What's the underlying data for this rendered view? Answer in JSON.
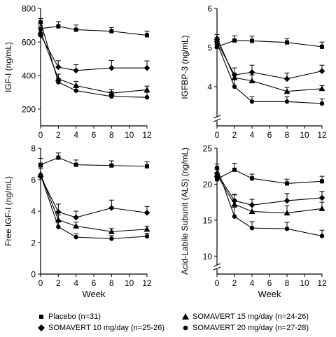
{
  "series_names": [
    "Placebo (n=31)",
    "SOMAVERT 10 mg/day (n=25-26)",
    "SOMAVERT 15 mg/day (n=24-26)",
    "SOMAVERT 20 mg/day (n=27-28)"
  ],
  "legend": {
    "placebo": "Placebo (n=31)",
    "s10": "SOMAVERT 10 mg/day (n=25-26)",
    "s15": "SOMAVERT 15 mg/day (n=24-26)",
    "s20": "SOMAVERT 20 mg/day (n=27-28)"
  },
  "chart_data": [
    {
      "type": "line",
      "title": "",
      "xlabel": "",
      "ylabel": "IGF-I (ng/mL)",
      "xlim": [
        0,
        12
      ],
      "ylim": [
        100,
        800
      ],
      "x_ticks": [
        0,
        2,
        4,
        6,
        8,
        10,
        12
      ],
      "y_ticks": [
        200,
        400,
        600,
        800
      ],
      "grid": false,
      "x": [
        0,
        2,
        4,
        8,
        12
      ],
      "series": [
        {
          "name": "Placebo (n=31)",
          "marker": "square",
          "values": [
            680,
            693,
            673,
            664,
            640
          ],
          "errors": [
            30,
            28,
            28,
            22,
            25
          ]
        },
        {
          "name": "SOMAVERT 10 mg/day (n=25-26)",
          "marker": "diamond",
          "values": [
            640,
            450,
            430,
            445,
            445
          ],
          "errors": [
            40,
            38,
            35,
            45,
            42
          ]
        },
        {
          "name": "SOMAVERT 15 mg/day (n=24-26)",
          "marker": "triangle",
          "values": [
            660,
            380,
            340,
            295,
            315
          ],
          "errors": [
            40,
            28,
            25,
            22,
            22
          ]
        },
        {
          "name": "SOMAVERT 20 mg/day (n=27-28)",
          "marker": "circle",
          "values": [
            720,
            360,
            310,
            275,
            270
          ],
          "errors": [
            20,
            22,
            20,
            28,
            30
          ]
        }
      ]
    },
    {
      "type": "line",
      "title": "",
      "xlabel": "",
      "ylabel": "IGFBP-3 (ng/mL)",
      "xlim": [
        0,
        12
      ],
      "ylim": [
        3,
        6
      ],
      "y_axis_break": true,
      "x_ticks": [
        0,
        2,
        4,
        6,
        8,
        10,
        12
      ],
      "y_ticks": [
        4,
        5,
        6
      ],
      "grid": false,
      "x": [
        0,
        2,
        4,
        8,
        12
      ],
      "series": [
        {
          "name": "Placebo (n=31)",
          "marker": "square",
          "values": [
            5.02,
            5.18,
            5.17,
            5.13,
            5.02
          ],
          "errors": [
            0.06,
            0.12,
            0.12,
            0.1,
            0.12
          ]
        },
        {
          "name": "SOMAVERT 10 mg/day (n=25-26)",
          "marker": "diamond",
          "values": [
            5.15,
            4.3,
            4.37,
            4.2,
            4.4
          ],
          "errors": [
            0.1,
            0.18,
            0.18,
            0.15,
            0.15
          ]
        },
        {
          "name": "SOMAVERT 15 mg/day (n=24-26)",
          "marker": "triangle",
          "values": [
            5.25,
            4.23,
            4.15,
            3.88,
            3.95
          ],
          "errors": [
            0.08,
            0.12,
            0.15,
            0.1,
            0.08
          ]
        },
        {
          "name": "SOMAVERT 20 mg/day (n=27-28)",
          "marker": "circle",
          "values": [
            5.12,
            4.0,
            3.62,
            3.62,
            3.57
          ],
          "errors": [
            0.08,
            0.18,
            0.12,
            0.12,
            0.12
          ]
        }
      ]
    },
    {
      "type": "line",
      "title": "",
      "xlabel": "Week",
      "ylabel": "Free IGF-I (ng/mL)",
      "xlim": [
        0,
        12
      ],
      "ylim": [
        0,
        8
      ],
      "x_ticks": [
        0,
        2,
        4,
        6,
        8,
        10,
        12
      ],
      "y_ticks": [
        0,
        2,
        4,
        6,
        8
      ],
      "grid": false,
      "x": [
        0,
        2,
        4,
        8,
        12
      ],
      "series": [
        {
          "name": "Placebo (n=31)",
          "marker": "square",
          "values": [
            6.95,
            7.4,
            6.95,
            6.9,
            6.85
          ],
          "errors": [
            0.4,
            0.3,
            0.3,
            0.3,
            0.3
          ]
        },
        {
          "name": "SOMAVERT 10 mg/day (n=25-26)",
          "marker": "diamond",
          "values": [
            6.2,
            3.95,
            3.6,
            4.2,
            3.9
          ],
          "errors": [
            0.5,
            0.5,
            0.4,
            0.5,
            0.4
          ]
        },
        {
          "name": "SOMAVERT 15 mg/day (n=24-26)",
          "marker": "triangle",
          "values": [
            6.35,
            3.45,
            3.05,
            2.7,
            2.85
          ],
          "errors": [
            0.6,
            0.3,
            0.25,
            0.2,
            0.2
          ]
        },
        {
          "name": "SOMAVERT 20 mg/day (n=27-28)",
          "marker": "circle",
          "values": [
            6.3,
            3.0,
            2.35,
            2.25,
            2.4
          ],
          "errors": [
            0.5,
            0.3,
            0.2,
            0.2,
            0.2
          ]
        }
      ]
    },
    {
      "type": "line",
      "title": "",
      "xlabel": "Week",
      "ylabel": "Acid-Labile Subunit (ALS) (ng/mL)",
      "xlim": [
        0,
        12
      ],
      "ylim": [
        7.5,
        25
      ],
      "y_axis_break": true,
      "x_ticks": [
        0,
        2,
        4,
        6,
        8,
        10,
        12
      ],
      "y_ticks": [
        10,
        15,
        20,
        25
      ],
      "grid": false,
      "x": [
        0,
        2,
        4,
        8,
        12
      ],
      "series": [
        {
          "name": "Placebo (n=31)",
          "marker": "square",
          "values": [
            20.7,
            22.0,
            20.8,
            20.1,
            20.4
          ],
          "errors": [
            0.5,
            0.9,
            0.6,
            0.6,
            0.7
          ]
        },
        {
          "name": "SOMAVERT 10 mg/day (n=25-26)",
          "marker": "diamond",
          "values": [
            21.5,
            17.7,
            17.1,
            17.7,
            18.1
          ],
          "errors": [
            0.7,
            0.9,
            0.8,
            1.0,
            0.9
          ]
        },
        {
          "name": "SOMAVERT 15 mg/day (n=24-26)",
          "marker": "triangle",
          "values": [
            21.3,
            17.2,
            16.2,
            16.0,
            16.6
          ],
          "errors": [
            0.7,
            1.3,
            0.9,
            1.0,
            0.9
          ]
        },
        {
          "name": "SOMAVERT 20 mg/day (n=27-28)",
          "marker": "circle",
          "values": [
            22.3,
            15.5,
            13.9,
            13.8,
            12.8
          ],
          "errors": [
            0.5,
            1.3,
            0.9,
            0.9,
            0.8
          ]
        }
      ]
    }
  ]
}
